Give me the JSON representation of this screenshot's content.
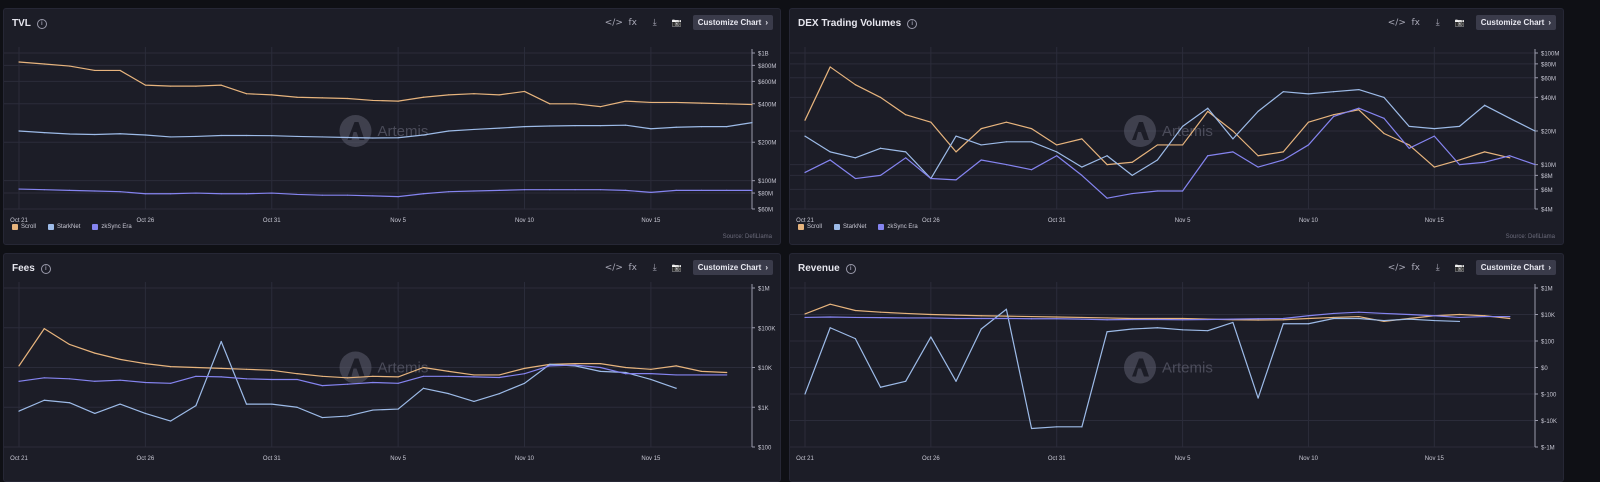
{
  "colors": {
    "scroll": "#e7b47d",
    "starknet": "#9dbbe8",
    "zksync": "#8584f0"
  },
  "toolbar": {
    "embed_icon": "</>",
    "fx_icon": "fx",
    "download_icon": "⤓",
    "camera_icon": "📷",
    "customize_label": "Customize Chart",
    "customize_chevron": "›"
  },
  "watermark": "Artemis",
  "chart_data": [
    {
      "type": "line",
      "title": "TVL",
      "scale": "log",
      "ylim": [
        60000000,
        1000000000
      ],
      "yticks": [
        {
          "v": 1000000000,
          "label": "$1B"
        },
        {
          "v": 800000000,
          "label": "$800M"
        },
        {
          "v": 600000000,
          "label": "$600M"
        },
        {
          "v": 400000000,
          "label": "$400M"
        },
        {
          "v": 200000000,
          "label": "$200M"
        },
        {
          "v": 100000000,
          "label": "$100M"
        },
        {
          "v": 80000000,
          "label": "$80M"
        },
        {
          "v": 60000000,
          "label": "$60M"
        }
      ],
      "xticks": [
        {
          "i": 0,
          "label": "Oct 21"
        },
        {
          "i": 5,
          "label": "Oct 26"
        },
        {
          "i": 10,
          "label": "Oct 31"
        },
        {
          "i": 15,
          "label": "Nov 5"
        },
        {
          "i": 20,
          "label": "Nov 10"
        },
        {
          "i": 25,
          "label": "Nov 15"
        }
      ],
      "series": [
        {
          "name": "Scroll",
          "key": "scroll",
          "values": [
            850000000,
            820000000,
            790000000,
            730000000,
            730000000,
            560000000,
            550000000,
            550000000,
            560000000,
            480000000,
            470000000,
            450000000,
            445000000,
            440000000,
            425000000,
            420000000,
            450000000,
            470000000,
            480000000,
            470000000,
            500000000,
            400000000,
            400000000,
            380000000,
            420000000,
            410000000,
            410000000,
            405000000,
            400000000,
            395000000
          ]
        },
        {
          "name": "StarkNet",
          "key": "starknet",
          "values": [
            245000000,
            238000000,
            232000000,
            230000000,
            233000000,
            228000000,
            220000000,
            222000000,
            226000000,
            226000000,
            225000000,
            222000000,
            220000000,
            218000000,
            216000000,
            217000000,
            228000000,
            245000000,
            252000000,
            258000000,
            265000000,
            268000000,
            270000000,
            270000000,
            272000000,
            255000000,
            262000000,
            265000000,
            265000000,
            285000000
          ]
        },
        {
          "name": "zkSync Era",
          "key": "zksync",
          "values": [
            86000000,
            85000000,
            84000000,
            83000000,
            82000000,
            79000000,
            79000000,
            80000000,
            79000000,
            79000000,
            80000000,
            78000000,
            77000000,
            77000000,
            76000000,
            75000000,
            79000000,
            82000000,
            83000000,
            84000000,
            85000000,
            85000000,
            85000000,
            85000000,
            84000000,
            81000000,
            84000000,
            84000000,
            84000000,
            84000000
          ]
        }
      ],
      "legend_position": "bottom-left",
      "source": "Source: DefiLlama"
    },
    {
      "type": "line",
      "title": "DEX Trading Volumes",
      "scale": "log",
      "ylim": [
        4000000,
        100000000
      ],
      "yticks": [
        {
          "v": 100000000,
          "label": "$100M"
        },
        {
          "v": 80000000,
          "label": "$80M"
        },
        {
          "v": 60000000,
          "label": "$60M"
        },
        {
          "v": 40000000,
          "label": "$40M"
        },
        {
          "v": 20000000,
          "label": "$20M"
        },
        {
          "v": 10000000,
          "label": "$10M"
        },
        {
          "v": 8000000,
          "label": "$8M"
        },
        {
          "v": 6000000,
          "label": "$6M"
        },
        {
          "v": 4000000,
          "label": "$4M"
        }
      ],
      "xticks": [
        {
          "i": 0,
          "label": "Oct 21"
        },
        {
          "i": 5,
          "label": "Oct 26"
        },
        {
          "i": 10,
          "label": "Oct 31"
        },
        {
          "i": 15,
          "label": "Nov 5"
        },
        {
          "i": 20,
          "label": "Nov 10"
        },
        {
          "i": 25,
          "label": "Nov 15"
        }
      ],
      "series": [
        {
          "name": "Scroll",
          "key": "scroll",
          "values": [
            25000000,
            75000000,
            52000000,
            40000000,
            28000000,
            24000000,
            13000000,
            21000000,
            24000000,
            21000000,
            15000000,
            17000000,
            10000000,
            10500000,
            15000000,
            15000000,
            30000000,
            20000000,
            12000000,
            13000000,
            24000000,
            28000000,
            31000000,
            19000000,
            15000000,
            9500000,
            11000000,
            13000000,
            11500000
          ]
        },
        {
          "name": "StarkNet",
          "key": "starknet",
          "values": [
            18000000,
            13000000,
            11500000,
            14000000,
            13000000,
            7500000,
            18000000,
            15000000,
            16000000,
            16000000,
            13000000,
            9500000,
            12000000,
            8000000,
            11000000,
            22000000,
            32000000,
            17000000,
            30000000,
            45000000,
            43000000,
            45000000,
            47000000,
            40000000,
            22000000,
            21000000,
            22000000,
            34000000,
            26000000,
            20000000
          ]
        },
        {
          "name": "zkSync Era",
          "key": "zksync",
          "values": [
            8500000,
            11000000,
            7500000,
            8000000,
            11500000,
            7500000,
            7300000,
            11000000,
            10000000,
            9000000,
            12000000,
            8000000,
            5000000,
            5500000,
            5800000,
            5800000,
            12000000,
            13000000,
            9500000,
            11000000,
            15000000,
            27000000,
            32000000,
            26000000,
            14000000,
            18000000,
            10000000,
            10500000,
            12000000,
            10000000
          ]
        }
      ],
      "legend_position": "bottom-left",
      "source": "Source: DefiLlama"
    },
    {
      "type": "line",
      "title": "Fees",
      "scale": "log",
      "ylim": [
        100,
        1000000
      ],
      "yticks": [
        {
          "v": 1000000,
          "label": "$1M"
        },
        {
          "v": 100000,
          "label": "$100K"
        },
        {
          "v": 10000,
          "label": "$10K"
        },
        {
          "v": 1000,
          "label": "$1K"
        },
        {
          "v": 100,
          "label": "$100"
        }
      ],
      "xticks": [
        {
          "i": 0,
          "label": "Oct 21"
        },
        {
          "i": 5,
          "label": "Oct 26"
        },
        {
          "i": 10,
          "label": "Oct 31"
        },
        {
          "i": 15,
          "label": "Nov 5"
        },
        {
          "i": 20,
          "label": "Nov 10"
        },
        {
          "i": 25,
          "label": "Nov 15"
        }
      ],
      "series": [
        {
          "name": "Scroll",
          "key": "scroll",
          "values": [
            11000,
            95000,
            38000,
            23000,
            16000,
            12500,
            10500,
            10000,
            9500,
            9000,
            8500,
            7000,
            6000,
            5500,
            6000,
            5800,
            10000,
            8000,
            6500,
            6500,
            9500,
            12000,
            12500,
            12500,
            10000,
            9000,
            11000,
            8000,
            7500
          ]
        },
        {
          "name": "StarkNet",
          "key": "starknet",
          "values": [
            800,
            1500,
            1300,
            700,
            1200,
            700,
            450,
            1100,
            45000,
            1200,
            1200,
            1000,
            550,
            600,
            850,
            900,
            3000,
            2200,
            1400,
            2200,
            4000,
            12000,
            11000,
            8000,
            7500,
            5000,
            3000
          ]
        },
        {
          "name": "zkSync Era",
          "key": "zksync",
          "values": [
            4500,
            5500,
            5200,
            4500,
            4800,
            4200,
            4000,
            6000,
            5800,
            5200,
            5000,
            5000,
            3500,
            3800,
            4200,
            4000,
            6000,
            6000,
            5800,
            5600,
            7000,
            11000,
            11500,
            10000,
            7000,
            7000,
            6500,
            6500,
            6500
          ]
        }
      ],
      "legend_position": "none"
    },
    {
      "type": "line",
      "title": "Revenue",
      "scale": "symlog",
      "ylim": [
        -1000000,
        1000000
      ],
      "yticks": [
        {
          "v": 1000000,
          "label": "$1M"
        },
        {
          "v": 10000,
          "label": "$10K"
        },
        {
          "v": 100,
          "label": "$100"
        },
        {
          "v": 0,
          "label": "$0"
        },
        {
          "v": -100,
          "label": "$-100"
        },
        {
          "v": -10000,
          "label": "$-10K"
        },
        {
          "v": -1000000,
          "label": "$-1M"
        }
      ],
      "xticks": [
        {
          "i": 0,
          "label": "Oct 21"
        },
        {
          "i": 5,
          "label": "Oct 26"
        },
        {
          "i": 10,
          "label": "Oct 31"
        },
        {
          "i": 15,
          "label": "Nov 5"
        },
        {
          "i": 20,
          "label": "Nov 10"
        },
        {
          "i": 25,
          "label": "Nov 15"
        }
      ],
      "series": [
        {
          "name": "Scroll",
          "key": "scroll",
          "values": [
            11000,
            60000,
            20000,
            15000,
            12000,
            10000,
            9000,
            8000,
            7500,
            7000,
            6500,
            6000,
            5500,
            5000,
            5000,
            5000,
            4500,
            4000,
            3800,
            4000,
            5000,
            6000,
            7000,
            3000,
            5000,
            8000,
            10000,
            8000,
            5000
          ]
        },
        {
          "name": "StarkNet",
          "key": "starknet",
          "values": [
            -100,
            1000,
            150,
            -30,
            -10,
            200,
            -10,
            800,
            25000,
            -40000,
            -30000,
            -30000,
            500,
            800,
            1000,
            700,
            600,
            2500,
            -200,
            2000,
            2000,
            5000,
            5000,
            3500,
            4500,
            3500,
            3000
          ]
        },
        {
          "name": "zkSync Era",
          "key": "zksync",
          "values": [
            6000,
            6500,
            6000,
            5800,
            5500,
            5500,
            5000,
            5000,
            5000,
            4800,
            4800,
            4500,
            4000,
            4200,
            4200,
            4000,
            4200,
            4500,
            4800,
            5000,
            8000,
            12000,
            15000,
            12000,
            10000,
            8000,
            6000,
            7000,
            7000
          ]
        }
      ],
      "legend_position": "none"
    }
  ]
}
